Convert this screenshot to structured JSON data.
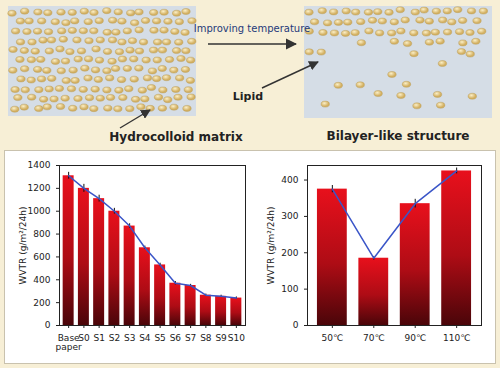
{
  "diagram": {
    "arrow_label": "Improving temperature",
    "left_label": "Hydrocolloid matrix",
    "particle_label": "Lipid",
    "right_label": "Bilayer-like structure"
  },
  "chart_data": [
    {
      "type": "bar",
      "y_label": "WVTR (g/m²/24h)",
      "categories": [
        "Base paper",
        "S0",
        "S1",
        "S2",
        "S3",
        "S4",
        "S5",
        "S6",
        "S7",
        "S8",
        "S9",
        "S10"
      ],
      "ylim": [
        0,
        1400
      ],
      "yticks": [
        0,
        200,
        400,
        600,
        800,
        1000,
        1200,
        1400
      ],
      "grid": false,
      "series": [
        {
          "type": "bar",
          "color": "#e8101c",
          "values": [
            1310,
            1200,
            1110,
            1000,
            870,
            680,
            530,
            370,
            350,
            265,
            255,
            240
          ],
          "errors": [
            30,
            35,
            30,
            25,
            20,
            15,
            15,
            15,
            10,
            10,
            10,
            10
          ]
        },
        {
          "type": "line",
          "color": "#3a55c8",
          "values": [
            1310,
            1200,
            1110,
            1000,
            870,
            680,
            530,
            370,
            350,
            265,
            255,
            240
          ]
        }
      ]
    },
    {
      "type": "bar",
      "y_label": "WVTR (g/m²/24h)",
      "categories": [
        "50℃",
        "70℃",
        "90℃",
        "110℃"
      ],
      "ylim": [
        0,
        440
      ],
      "yticks": [
        0,
        100,
        200,
        300,
        400
      ],
      "grid": false,
      "series": [
        {
          "type": "bar",
          "color": "#e8101c",
          "values": [
            375,
            185,
            335,
            425
          ],
          "errors": [
            10,
            5,
            12,
            8
          ]
        },
        {
          "type": "line",
          "color": "#3a55c8",
          "values": [
            375,
            185,
            335,
            425
          ]
        }
      ]
    }
  ]
}
